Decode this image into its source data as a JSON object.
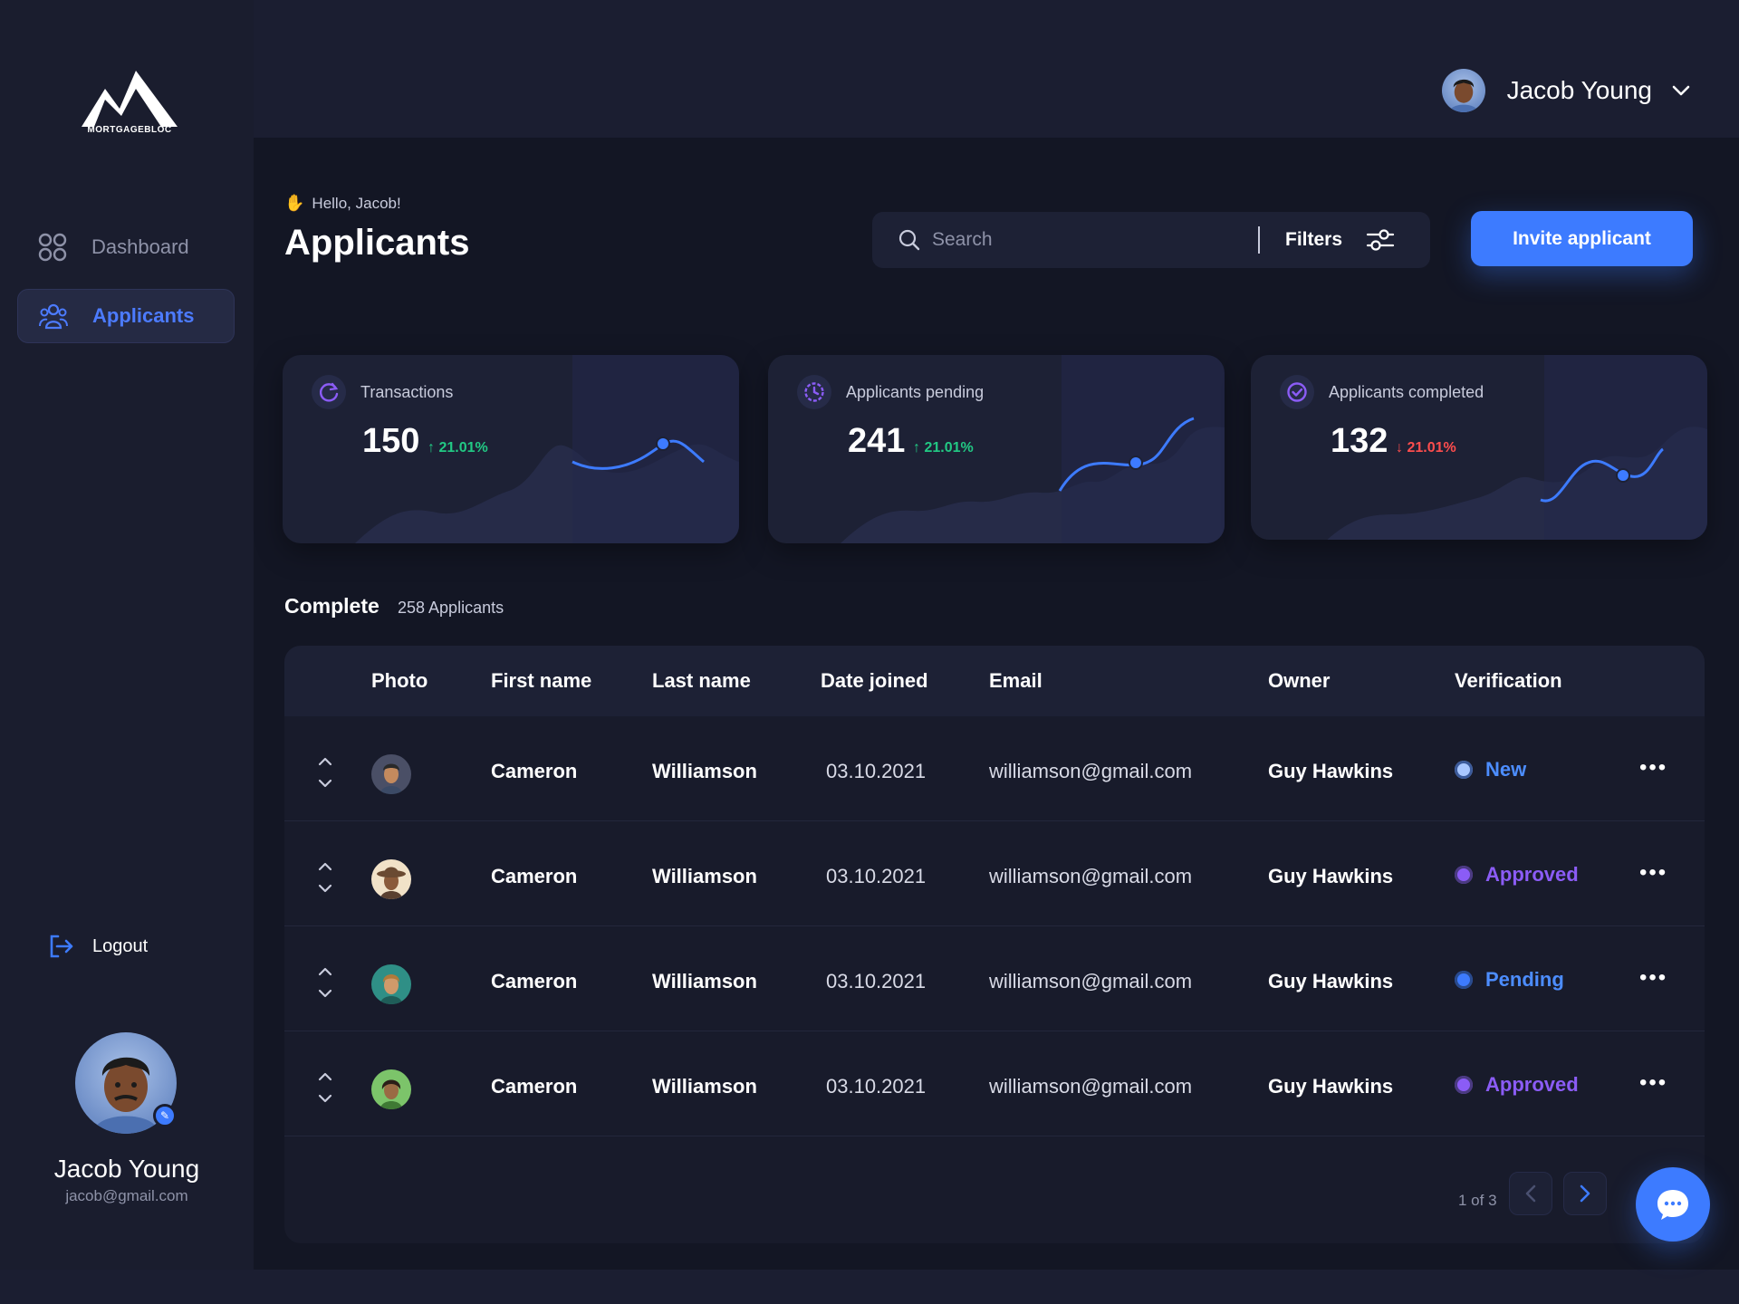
{
  "brand": {
    "name": "MORTGAGEBLOC"
  },
  "sidebar": {
    "items": [
      {
        "label": "Dashboard",
        "icon": "grid-icon",
        "active": false
      },
      {
        "label": "Applicants",
        "icon": "users-icon",
        "active": true
      }
    ],
    "logout_label": "Logout",
    "profile": {
      "name": "Jacob Young",
      "email": "jacob@gmail.com"
    }
  },
  "header": {
    "user_name": "Jacob Young"
  },
  "page": {
    "greeting": "Hello, Jacob!",
    "title": "Applicants",
    "search_placeholder": "Search",
    "filters_label": "Filters",
    "invite_label": "Invite applicant"
  },
  "stats": [
    {
      "label": "Transactions",
      "value": "150",
      "delta": "21.01%",
      "trend": "up"
    },
    {
      "label": "Applicants pending",
      "value": "241",
      "delta": "21.01%",
      "trend": "up"
    },
    {
      "label": "Applicants completed",
      "value": "132",
      "delta": "21.01%",
      "trend": "down"
    }
  ],
  "section": {
    "title": "Complete",
    "count": "258 Applicants"
  },
  "table": {
    "columns": [
      "Photo",
      "First name",
      "Last name",
      "Date joined",
      "Email",
      "Owner",
      "Verification"
    ],
    "rows": [
      {
        "first": "Cameron",
        "last": "Williamson",
        "date": "03.10.2021",
        "email": "williamson@gmail.com",
        "owner": "Guy Hawkins",
        "status": "New",
        "status_color": "#4c8dff",
        "dot_color": "#a9c7ff"
      },
      {
        "first": "Cameron",
        "last": "Williamson",
        "date": "03.10.2021",
        "email": "williamson@gmail.com",
        "owner": "Guy Hawkins",
        "status": "Approved",
        "status_color": "#8b5cf6",
        "dot_color": "#8b5cf6"
      },
      {
        "first": "Cameron",
        "last": "Williamson",
        "date": "03.10.2021",
        "email": "williamson@gmail.com",
        "owner": "Guy Hawkins",
        "status": "Pending",
        "status_color": "#4c8dff",
        "dot_color": "#3d7bff"
      },
      {
        "first": "Cameron",
        "last": "Williamson",
        "date": "03.10.2021",
        "email": "williamson@gmail.com",
        "owner": "Guy Hawkins",
        "status": "Approved",
        "status_color": "#8b5cf6",
        "dot_color": "#8b5cf6"
      }
    ]
  },
  "pagination": {
    "label": "1 of 3"
  },
  "colors": {
    "accent": "#3d7bff",
    "up": "#22c984",
    "down": "#ff4d4d",
    "purple": "#8b5cf6"
  }
}
